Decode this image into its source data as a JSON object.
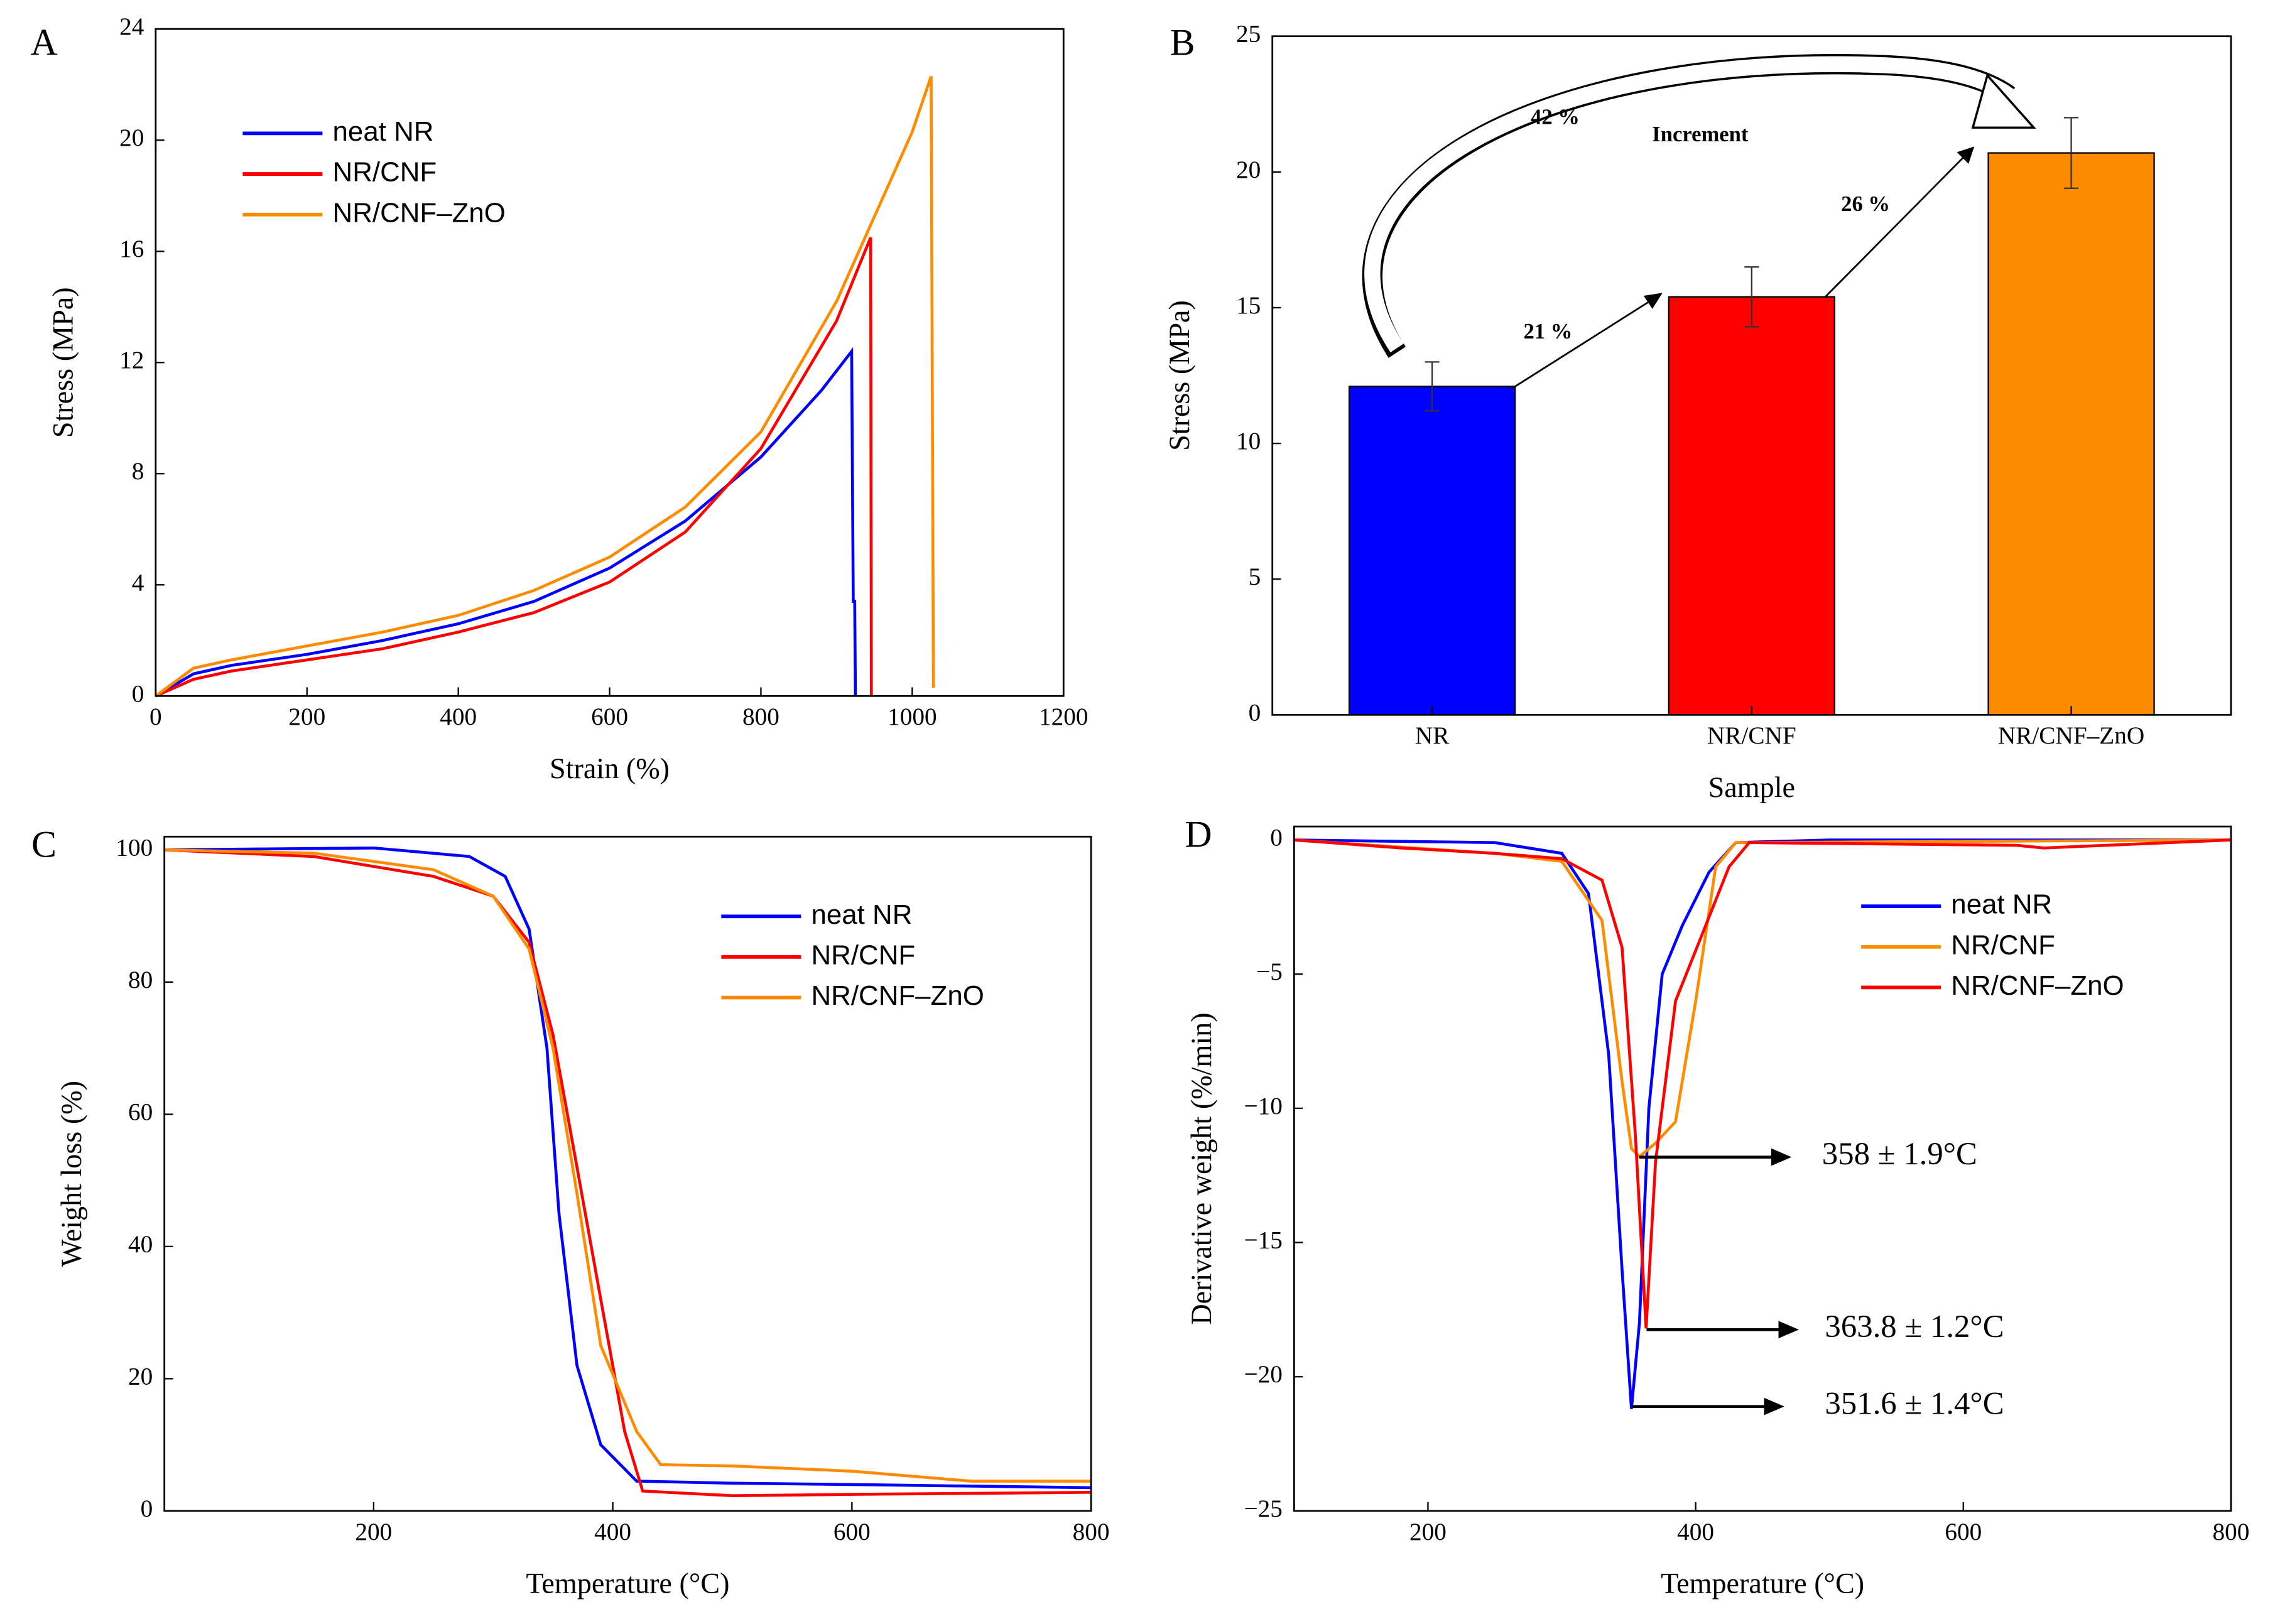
{
  "chart_data": [
    {
      "type": "line",
      "label": "A",
      "xlabel": "Strain (%)",
      "ylabel": "Stress (MPa)",
      "xlim": [
        0,
        1200
      ],
      "ylim": [
        0,
        24
      ],
      "xticks": [
        0,
        200,
        400,
        600,
        800,
        1000,
        1200
      ],
      "yticks": [
        0,
        4,
        8,
        12,
        16,
        20,
        24
      ],
      "legend": "upper left",
      "series": [
        {
          "name": "neat NR",
          "color": "#0000ff",
          "x": [
            0,
            50,
            100,
            200,
            300,
            400,
            500,
            600,
            700,
            800,
            880,
            920,
            922,
            924,
            925
          ],
          "values": [
            0,
            0.8,
            1.1,
            1.5,
            2,
            2.6,
            3.4,
            4.6,
            6.3,
            8.6,
            11,
            12.4,
            3.4,
            3.4,
            0
          ]
        },
        {
          "name": "NR/CNF",
          "color": "#ff0000",
          "x": [
            0,
            50,
            100,
            200,
            300,
            400,
            500,
            600,
            700,
            800,
            900,
            945,
            946
          ],
          "values": [
            0,
            0.6,
            0.9,
            1.3,
            1.7,
            2.3,
            3,
            4.1,
            5.9,
            8.9,
            13.5,
            16.5,
            0
          ]
        },
        {
          "name": "NR/CNF–ZnO",
          "color": "#ff8c00",
          "x": [
            0,
            50,
            100,
            200,
            300,
            400,
            500,
            600,
            700,
            800,
            900,
            1000,
            1025,
            1028
          ],
          "values": [
            0,
            1,
            1.3,
            1.8,
            2.3,
            2.9,
            3.8,
            5,
            6.8,
            9.5,
            14.2,
            20.3,
            22.3,
            0.3
          ]
        }
      ]
    },
    {
      "type": "bar",
      "label": "B",
      "xlabel": "Sample",
      "ylabel": "Stress (MPa)",
      "ylim": [
        0,
        25
      ],
      "yticks": [
        0,
        5,
        10,
        15,
        20,
        25
      ],
      "categories": [
        "NR",
        "NR/CNF",
        "NR/CNF–ZnO"
      ],
      "values": [
        12.1,
        15.4,
        20.7
      ],
      "errors": [
        0.9,
        1.1,
        1.3
      ],
      "colors": [
        "#0000ff",
        "#ff0000",
        "#ff8c00"
      ],
      "annotations": [
        "42 %",
        "Increment",
        "21 %",
        "26 %"
      ]
    },
    {
      "type": "line",
      "label": "C",
      "xlabel": "Temperature (°C)",
      "ylabel": "Weight loss (%)",
      "xlim": [
        25,
        800
      ],
      "ylim": [
        0,
        102
      ],
      "xticks": [
        200,
        400,
        600,
        800
      ],
      "yticks": [
        0,
        20,
        40,
        60,
        80,
        100
      ],
      "legend": "upper right",
      "series": [
        {
          "name": "neat NR",
          "color": "#0000ff",
          "x": [
            25,
            200,
            280,
            310,
            330,
            345,
            355,
            370,
            390,
            420,
            500,
            600,
            800
          ],
          "values": [
            100,
            100.3,
            99,
            96,
            88,
            70,
            45,
            22,
            10,
            4.5,
            4.2,
            4,
            3.5
          ]
        },
        {
          "name": "NR/CNF",
          "color": "#ff0000",
          "x": [
            25,
            150,
            250,
            300,
            330,
            350,
            370,
            390,
            410,
            425,
            500,
            600,
            800
          ],
          "values": [
            100,
            99,
            96,
            93,
            86,
            72,
            52,
            32,
            12,
            3,
            2.3,
            2.5,
            2.8
          ]
        },
        {
          "name": "NR/CNF–ZnO",
          "color": "#ff8c00",
          "x": [
            25,
            150,
            250,
            300,
            330,
            350,
            370,
            390,
            420,
            440,
            500,
            600,
            700,
            800
          ],
          "values": [
            100,
            99.5,
            97,
            93,
            85,
            70,
            48,
            25,
            12,
            7,
            6.8,
            6,
            4.5,
            4.5
          ]
        }
      ]
    },
    {
      "type": "line",
      "label": "D",
      "xlabel": "Temperature (°C)",
      "ylabel": "Derivative weight (%/min)",
      "xlim": [
        100,
        800
      ],
      "ylim": [
        -25,
        0.5
      ],
      "xticks": [
        200,
        400,
        600,
        800
      ],
      "yticks": [
        {
          "value": -25,
          "label": "−25"
        },
        {
          "value": -20,
          "label": "−20"
        },
        {
          "value": -15,
          "label": "−15"
        },
        {
          "value": -10,
          "label": "−10"
        },
        {
          "value": -5,
          "label": "−5"
        },
        0
      ],
      "legend": "upper right",
      "annotations": [
        "358 ± 1.9°C",
        "363.8 ± 1.2°C",
        "351.6 ± 1.4°C"
      ],
      "series": [
        {
          "name": "neat NR",
          "color": "#0000ff",
          "x": [
            100,
            250,
            300,
            320,
            335,
            345,
            352,
            358,
            365,
            375,
            390,
            410,
            430,
            500,
            800
          ],
          "values": [
            0,
            -0.1,
            -0.5,
            -2,
            -8,
            -16,
            -21.2,
            -18,
            -10,
            -5,
            -3.2,
            -1.2,
            -0.1,
            0,
            0
          ]
        },
        {
          "name": "NR/CNF",
          "color": "#ff8c00",
          "x": [
            100,
            250,
            300,
            330,
            345,
            352,
            358,
            370,
            385,
            400,
            415,
            430,
            800
          ],
          "values": [
            0,
            -0.5,
            -0.8,
            -3,
            -9,
            -11.5,
            -11.8,
            -11.3,
            -10.5,
            -6,
            -1,
            -0.1,
            0
          ]
        },
        {
          "name": "NR/CNF–ZnO",
          "color": "#ff0000",
          "x": [
            100,
            180,
            250,
            300,
            330,
            345,
            355,
            363,
            370,
            385,
            405,
            425,
            440,
            640,
            660,
            800
          ],
          "values": [
            0,
            -0.3,
            -0.5,
            -0.7,
            -1.5,
            -4,
            -11,
            -18.2,
            -12,
            -6,
            -3.5,
            -1,
            -0.1,
            -0.2,
            -0.3,
            0
          ]
        }
      ]
    }
  ]
}
